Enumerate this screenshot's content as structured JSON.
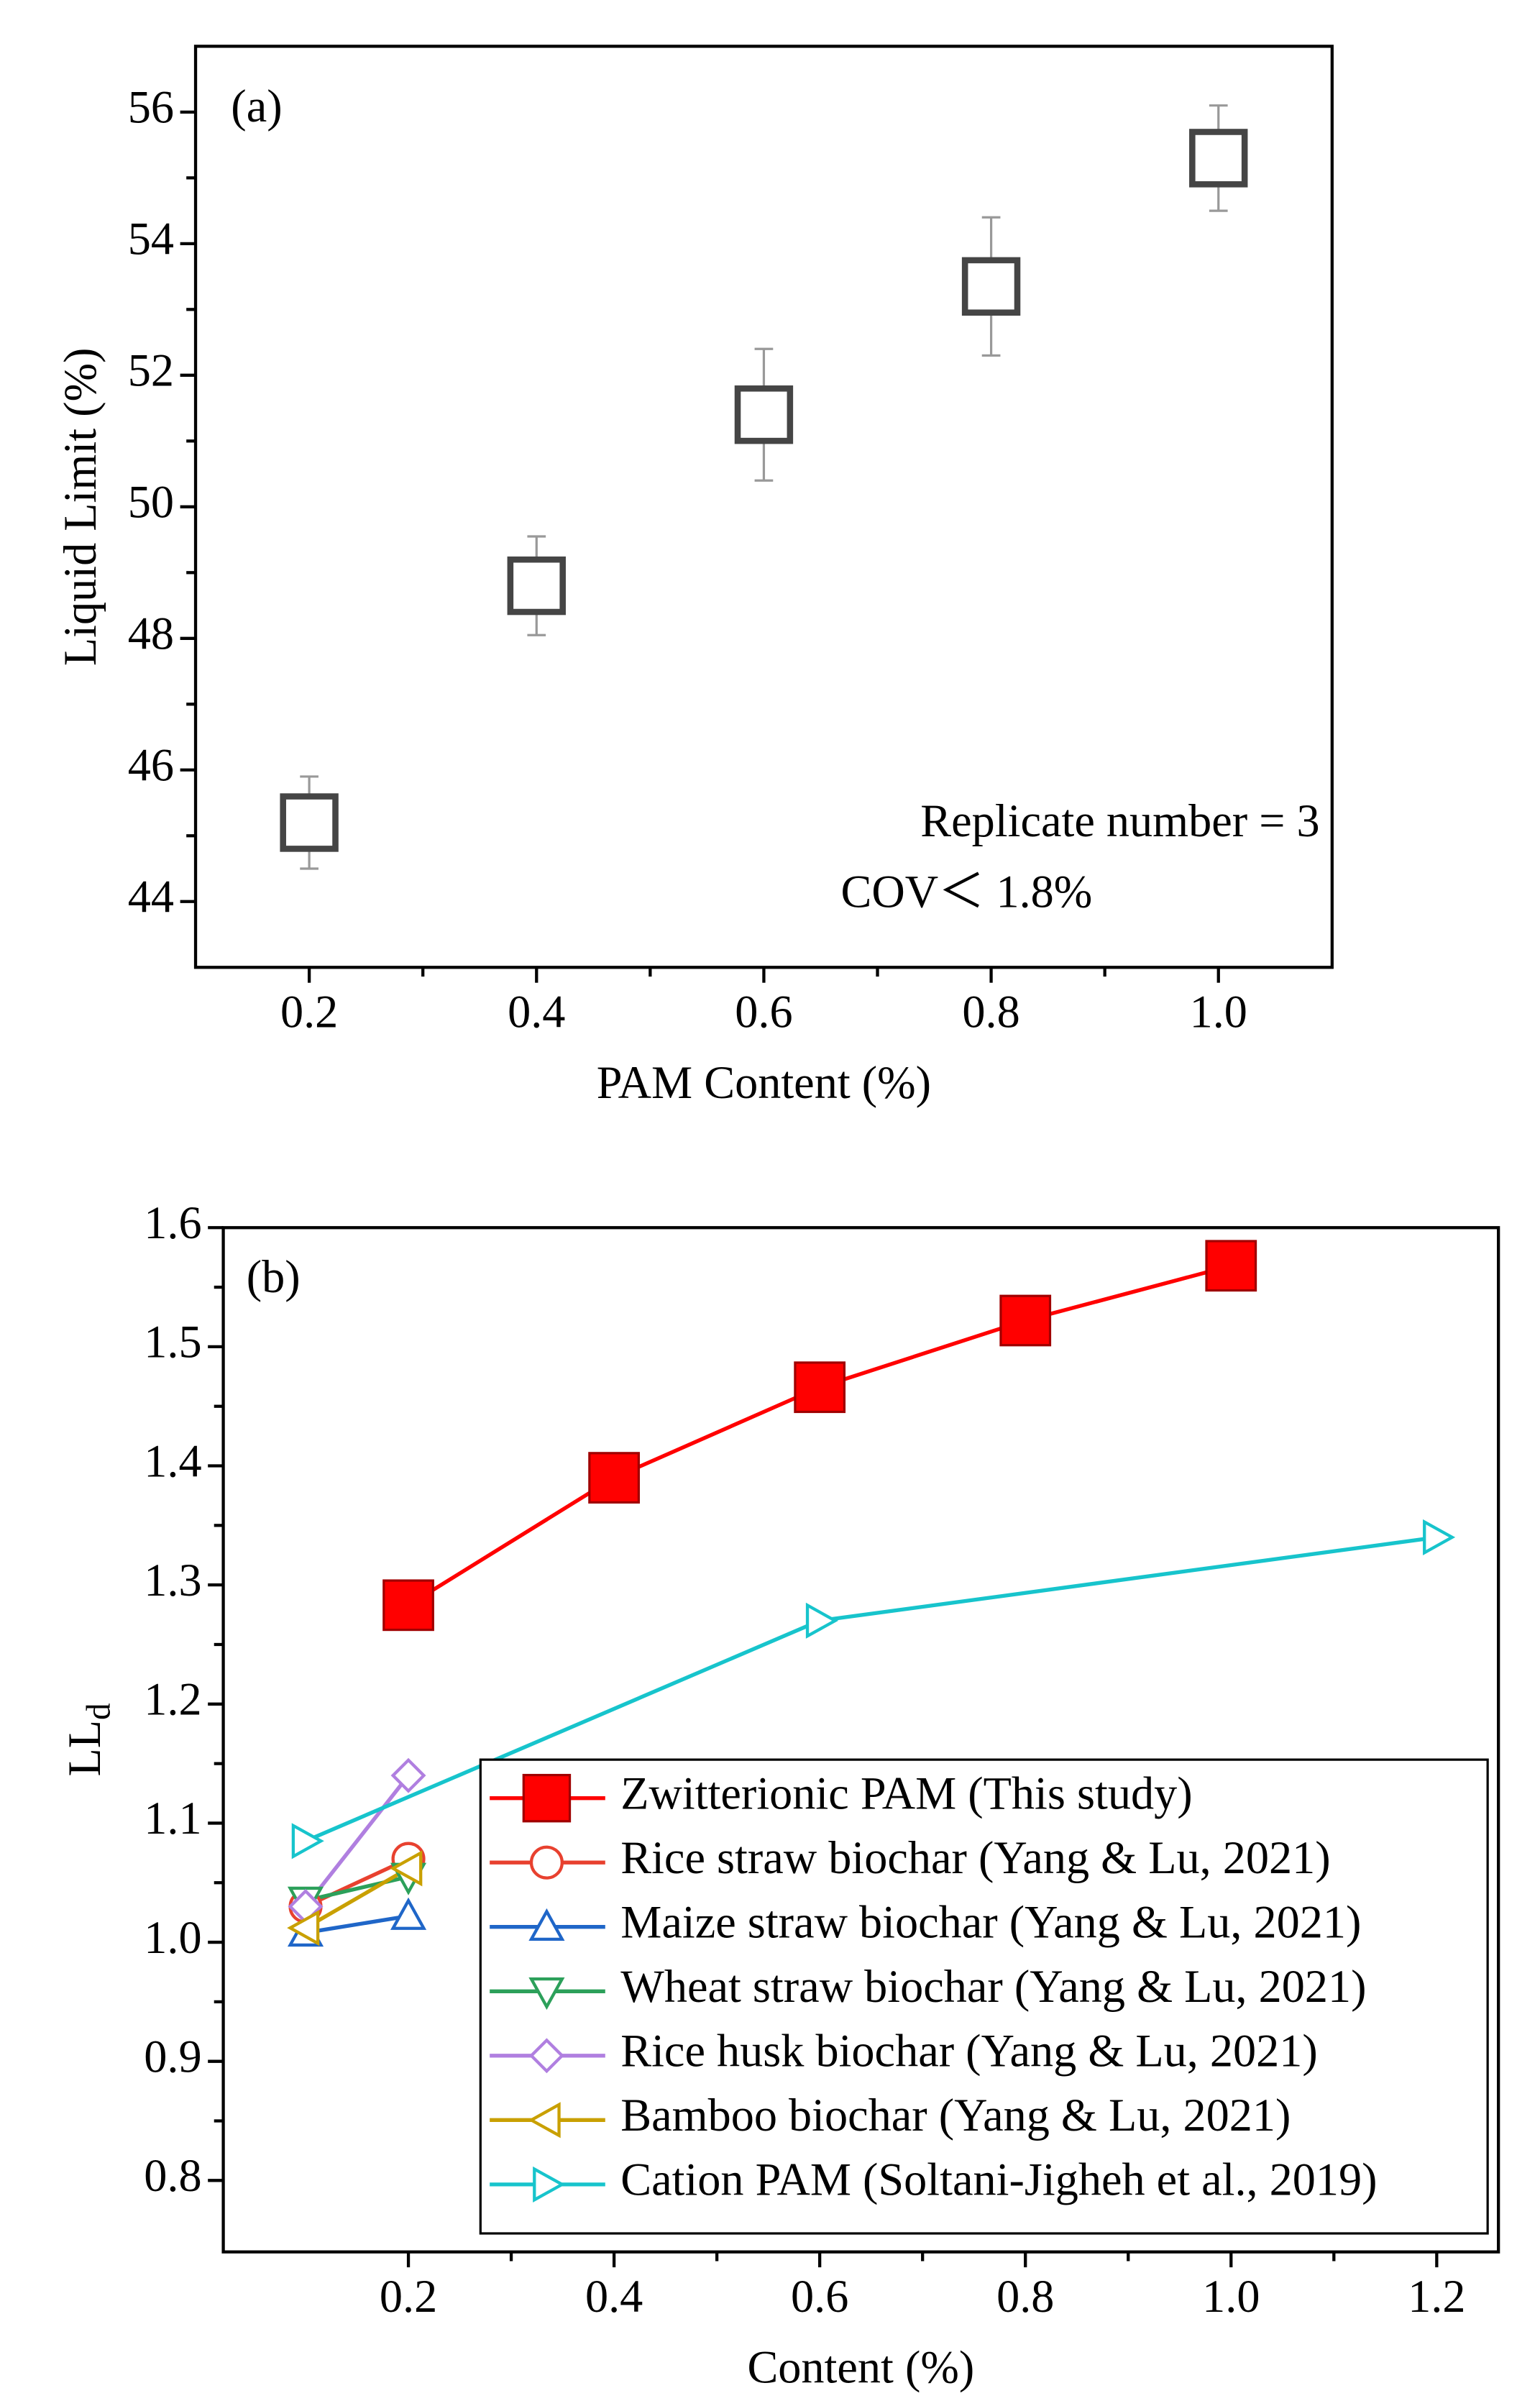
{
  "chart_data": [
    {
      "type": "scatter",
      "annotations": [
        "(a)",
        "Replicate number = 3",
        "COV＜ 1.8%"
      ],
      "x_label": "PAM Content (%)",
      "y_label": "Liquid Limit (%)",
      "x": [
        0.2,
        0.4,
        0.6,
        0.8,
        1.0
      ],
      "values": [
        45.2,
        48.8,
        51.4,
        53.35,
        55.3
      ],
      "errors": [
        0.7,
        0.75,
        1.0,
        1.05,
        0.8
      ],
      "color": "#454545",
      "marker": "square",
      "filled": false,
      "xlim": [
        0.1,
        1.1
      ],
      "xticks": [
        0.2,
        0.4,
        0.6,
        0.8,
        {
          "value": 1,
          "label": "1.0"
        }
      ],
      "ylim": [
        43,
        57
      ],
      "yticks": [
        44,
        46,
        48,
        50,
        52,
        54,
        56
      ]
    },
    {
      "type": "line",
      "annotations": [
        "(b)"
      ],
      "x_label": "Content (%)",
      "y_label": "LL",
      "y_label_subscript": "d",
      "legend": "lower right",
      "series": [
        {
          "name": "Zwitterionic PAM (This study)",
          "color": "#ff0000",
          "marker": "square",
          "filled": true,
          "x": [
            0.2,
            0.4,
            0.6,
            0.8,
            1.0
          ],
          "values": [
            1.283,
            1.39,
            1.466,
            1.522,
            1.568
          ]
        },
        {
          "name": "Rice straw biochar (Yang & Lu, 2021)",
          "color": "#e8412f",
          "marker": "circle",
          "filled": false,
          "x": [
            0.1,
            0.2
          ],
          "values": [
            1.03,
            1.07
          ]
        },
        {
          "name": "Maize straw biochar (Yang & Lu, 2021)",
          "color": "#1f66c8",
          "marker": "triangle-up",
          "filled": false,
          "x": [
            0.1,
            0.2
          ],
          "values": [
            1.008,
            1.022
          ]
        },
        {
          "name": "Wheat straw biochar (Yang & Lu, 2021)",
          "color": "#2ca05a",
          "marker": "triangle-down",
          "filled": false,
          "x": [
            0.1,
            0.2
          ],
          "values": [
            1.035,
            1.055
          ]
        },
        {
          "name": "Rice husk biochar (Yang & Lu, 2021)",
          "color": "#b07fe0",
          "marker": "diamond",
          "filled": false,
          "x": [
            0.1,
            0.2
          ],
          "values": [
            1.03,
            1.14
          ]
        },
        {
          "name": "Bamboo biochar (Yang & Lu, 2021)",
          "color": "#c9a000",
          "marker": "triangle-left",
          "filled": false,
          "x": [
            0.1,
            0.2
          ],
          "values": [
            1.012,
            1.062
          ]
        },
        {
          "name": "Cation PAM (Soltani-Jigheh et al., 2019)",
          "color": "#17c4cc",
          "marker": "triangle-right",
          "filled": false,
          "x": [
            0.1,
            0.6,
            1.2
          ],
          "values": [
            1.085,
            1.27,
            1.34
          ]
        }
      ],
      "xlim": [
        0.02,
        1.26
      ],
      "xticks": [
        0.2,
        0.4,
        0.6,
        0.8,
        {
          "value": 1,
          "label": "1.0"
        },
        1.2
      ],
      "ylim": [
        0.74,
        1.6
      ],
      "yticks": [
        0.8,
        0.9,
        {
          "value": 1,
          "label": "1.0"
        },
        1.1,
        1.2,
        1.3,
        1.4,
        1.5,
        1.6
      ]
    }
  ]
}
